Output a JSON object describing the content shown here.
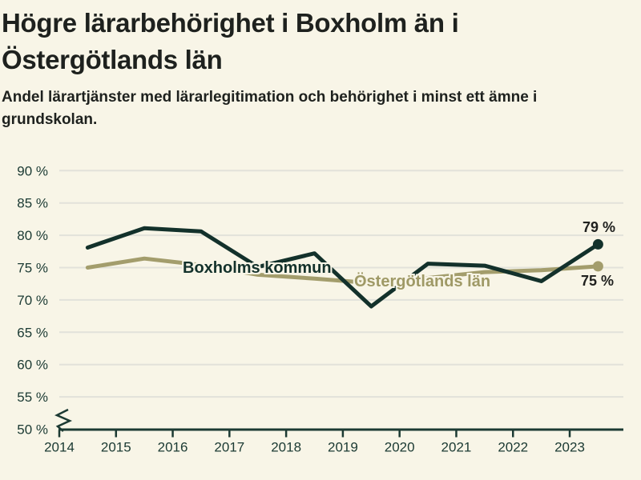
{
  "title": "Högre lärarbehörighet i Boxholm än i Östergötlands län",
  "title_lines": [
    "Högre lärarbehörighet i Boxholm än i",
    "Östergötlands län"
  ],
  "subtitle": "Andel lärartjänster med lärarlegitimation och behörighet i minst ett ämne i grundskolan.",
  "subtitle_lines": [
    "Andel lärartjänster med lärarlegitimation och behörighet i minst ett ämne i",
    "grundskolan."
  ],
  "colors": {
    "background": "#f8f5e7",
    "grid": "#e2e2da",
    "axis": "#1c3a33",
    "axis_label": "#1b3a33",
    "text": "#1e211e",
    "series_boxholm": "#13312b",
    "series_ostergotland": "#a39d6c"
  },
  "chart_data": {
    "type": "line",
    "title": "Högre lärarbehörighet i Boxholm än i Östergötlands län",
    "subtitle": "Andel lärartjänster med lärarlegitimation och behörighet i minst ett ämne i grundskolan.",
    "x": [
      2014.5,
      2015.5,
      2016.5,
      2017.5,
      2018.5,
      2019.5,
      2020.5,
      2021.5,
      2022.5,
      2023.5
    ],
    "series": [
      {
        "id": "boxholms-kommun",
        "name": "Boxholms kommun",
        "color": "#13312b",
        "values": [
          78.1,
          81.1,
          80.6,
          75.1,
          77.2,
          69.0,
          75.6,
          75.3,
          72.9,
          78.6
        ],
        "end_label": "79 %"
      },
      {
        "id": "ostergotlands-lan",
        "name": "Östergötlands län",
        "color": "#a39d6c",
        "values": [
          75.0,
          76.4,
          75.4,
          73.9,
          73.3,
          72.6,
          73.4,
          74.3,
          74.6,
          75.2
        ],
        "end_label": "75 %"
      }
    ],
    "xticks": [
      {
        "value": 2014,
        "label": "2014"
      },
      {
        "value": 2015,
        "label": "2015"
      },
      {
        "value": 2016,
        "label": "2016"
      },
      {
        "value": 2017,
        "label": "2017"
      },
      {
        "value": 2018,
        "label": "2018"
      },
      {
        "value": 2019,
        "label": "2019"
      },
      {
        "value": 2020,
        "label": "2020"
      },
      {
        "value": 2021,
        "label": "2021"
      },
      {
        "value": 2022,
        "label": "2022"
      },
      {
        "value": 2023,
        "label": "2023"
      }
    ],
    "yticks": [
      {
        "value": 50,
        "label": "50 %"
      },
      {
        "value": 55,
        "label": "55 %"
      },
      {
        "value": 60,
        "label": "60 %"
      },
      {
        "value": 65,
        "label": "65 %"
      },
      {
        "value": 70,
        "label": "70 %"
      },
      {
        "value": 75,
        "label": "75 %"
      },
      {
        "value": 80,
        "label": "80 %"
      },
      {
        "value": 85,
        "label": "85 %"
      },
      {
        "value": 90,
        "label": "90 %"
      }
    ],
    "ylim": [
      50,
      92
    ],
    "grid": "horizontal",
    "axis_break_at_origin": true,
    "legend_position": "inline-labels"
  }
}
